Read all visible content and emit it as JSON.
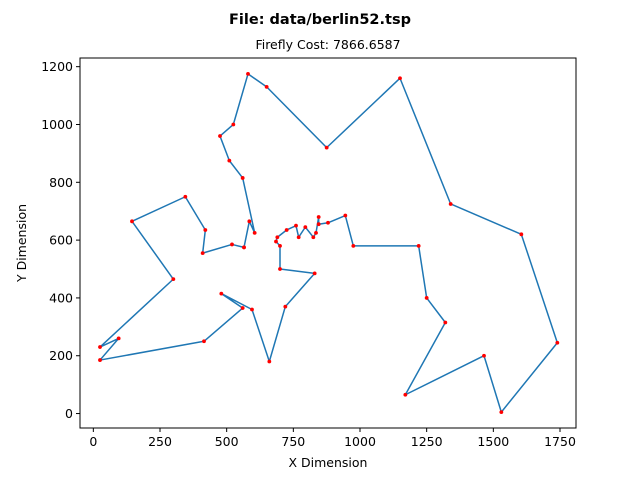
{
  "figure": {
    "suptitle": "File: data/berlin52.tsp"
  },
  "chart_data": {
    "type": "line",
    "title": "Firefly Cost: 7866.6587",
    "xlabel": "X Dimension",
    "ylabel": "Y Dimension",
    "xlim": [
      -50,
      1810
    ],
    "ylim": [
      -50,
      1230
    ],
    "xticks": [
      0,
      250,
      500,
      750,
      1000,
      1250,
      1500,
      1750
    ],
    "yticks": [
      0,
      200,
      400,
      600,
      800,
      1000,
      1200
    ],
    "grid": false,
    "line_color": "#1f77b4",
    "marker_color": "#ff0000",
    "route": [
      [
        565,
        575
      ],
      [
        585,
        665
      ],
      [
        605,
        625
      ],
      [
        560,
        815
      ],
      [
        510,
        875
      ],
      [
        475,
        960
      ],
      [
        525,
        1000
      ],
      [
        580,
        1175
      ],
      [
        650,
        1130
      ],
      [
        875,
        920
      ],
      [
        1150,
        1160
      ],
      [
        1340,
        725
      ],
      [
        1605,
        620
      ],
      [
        1740,
        245
      ],
      [
        1530,
        5
      ],
      [
        1465,
        200
      ],
      [
        1170,
        65
      ],
      [
        1320,
        315
      ],
      [
        1250,
        400
      ],
      [
        1220,
        580
      ],
      [
        975,
        580
      ],
      [
        945,
        685
      ],
      [
        880,
        660
      ],
      [
        845,
        655
      ],
      [
        845,
        680
      ],
      [
        835,
        625
      ],
      [
        825,
        610
      ],
      [
        795,
        645
      ],
      [
        770,
        610
      ],
      [
        760,
        650
      ],
      [
        725,
        635
      ],
      [
        690,
        610
      ],
      [
        685,
        595
      ],
      [
        700,
        580
      ],
      [
        700,
        500
      ],
      [
        830,
        485
      ],
      [
        720,
        370
      ],
      [
        660,
        180
      ],
      [
        595,
        360
      ],
      [
        480,
        415
      ],
      [
        560,
        365
      ],
      [
        415,
        250
      ],
      [
        25,
        185
      ],
      [
        95,
        260
      ],
      [
        25,
        230
      ],
      [
        300,
        465
      ],
      [
        145,
        665
      ],
      [
        345,
        750
      ],
      [
        420,
        635
      ],
      [
        410,
        555
      ],
      [
        520,
        585
      ],
      [
        565,
        575
      ]
    ]
  }
}
